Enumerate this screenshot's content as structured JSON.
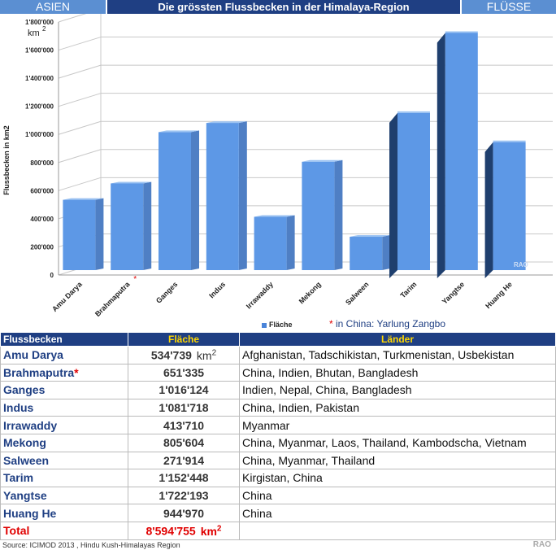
{
  "header": {
    "left": "ASIEN",
    "title": "Die grössten Flussbecken in der Himalaya-Region",
    "right": "FLÜSSE"
  },
  "chart_data": {
    "type": "bar",
    "categories": [
      "Amu Darya",
      "Brahmaputra",
      "Ganges",
      "Indus",
      "Irrawaddy",
      "Mekong",
      "Salween",
      "Tarim",
      "Yangtse",
      "Huang He"
    ],
    "series": [
      {
        "name": "Fläche",
        "values": [
          534739,
          651335,
          1016124,
          1081718,
          413710,
          805604,
          271914,
          1152448,
          1722193,
          944970
        ]
      }
    ],
    "ylabel": "Flussbecken in km2",
    "unit_label": "km",
    "unit_sup": "2",
    "ylim": [
      0,
      1800000
    ],
    "yticks": [
      "0",
      "200'000",
      "400'000",
      "600'000",
      "800'000",
      "1'000'000",
      "1'200'000",
      "1'400'000",
      "1'600'000",
      "1'800'000"
    ],
    "marked_category": "Brahmaputra",
    "legend_position": "bottom",
    "grid": true,
    "watermark": "RAO"
  },
  "footnote": {
    "star": "*",
    "text": " in China:  Yarlung Zangbo"
  },
  "table": {
    "headers": [
      "Flussbecken",
      "Fläche",
      "Länder"
    ],
    "unit_text": "km",
    "unit_sup": "2",
    "rows": [
      {
        "name": "Amu Darya",
        "area": "534'739",
        "countries": "Afghanistan, Tadschikistan, Turkmenistan, Usbekistan",
        "unit": true
      },
      {
        "name": "Brahmaputra",
        "star": "*",
        "area": "651'335",
        "countries": "China, Indien, Bhutan, Bangladesh"
      },
      {
        "name": "Ganges",
        "area": "1'016'124",
        "countries": "Indien, Nepal, China, Bangladesh"
      },
      {
        "name": "Indus",
        "area": "1'081'718",
        "countries": "China, Indien, Pakistan"
      },
      {
        "name": "Irrawaddy",
        "area": "413'710",
        "countries": "Myanmar"
      },
      {
        "name": "Mekong",
        "area": "805'604",
        "countries": "China, Myanmar, Laos, Thailand, Kambodscha, Vietnam"
      },
      {
        "name": "Salween",
        "area": "271'914",
        "countries": "China, Myanmar, Thailand"
      },
      {
        "name": "Tarim",
        "area": "1'152'448",
        "countries": "Kirgistan, China"
      },
      {
        "name": "Yangtse",
        "area": "1'722'193",
        "countries": "China"
      },
      {
        "name": "Huang He",
        "area": "944'970",
        "countries": "China"
      }
    ],
    "total": {
      "name": "Total",
      "area": "8'594'755",
      "countries": ""
    }
  },
  "source": "Source: ICIMOD 2013 , Hindu Kush-Himalayas Region",
  "watermark": "RAO",
  "colors": {
    "bar_front": "#5d98e6",
    "bar_side_light": "#4f7fc4",
    "bar_side_dark": "#1f3f6e",
    "header_dark": "#1f3f83",
    "header_light": "#5b8fd2",
    "accent_red": "#e00000"
  }
}
